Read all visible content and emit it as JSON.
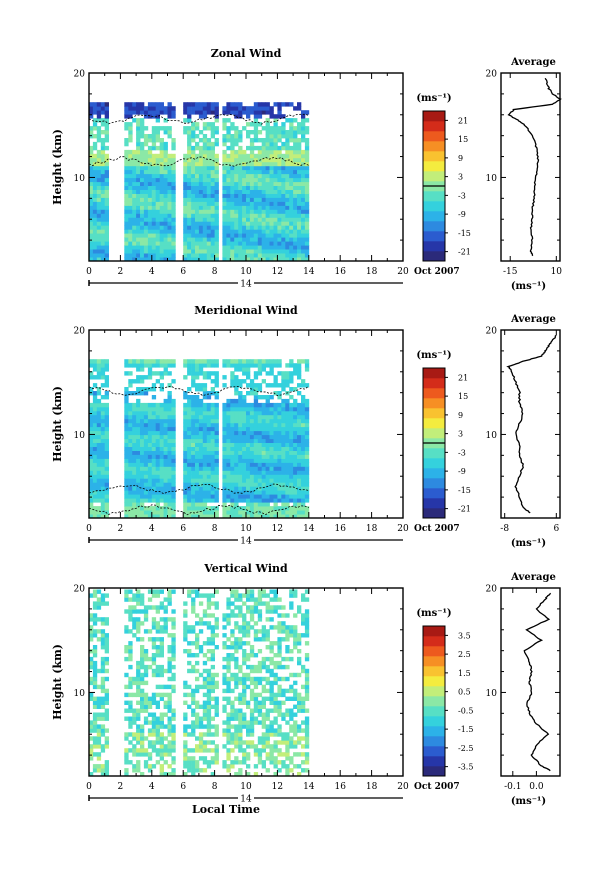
{
  "chart_data": [
    {
      "type": "heatmap",
      "title": "Zonal Wind",
      "ylabel": "Height (km)",
      "ylim": [
        2,
        20
      ],
      "y_ticks": [
        "10",
        "20"
      ],
      "xlim": [
        0,
        20
      ],
      "x_ticks": [
        "0",
        "2",
        "4",
        "6",
        "8",
        "10",
        "12",
        "14",
        "16",
        "18",
        "20"
      ],
      "date_label": "14",
      "date_suffix": "Oct 2007",
      "data_time_range": [
        0,
        14
      ],
      "data_gaps": [
        [
          1.3,
          2.3
        ],
        [
          5.6,
          5.9
        ],
        [
          8.2,
          8.5
        ]
      ],
      "colorbar": {
        "unit": "(ms⁻¹)",
        "ticks": [
          "21",
          "15",
          "9",
          "3",
          "-3",
          "-9",
          "-15",
          "-21"
        ],
        "range": [
          -24,
          24
        ],
        "zero_line": true
      },
      "profile": {
        "title": "Average",
        "x_ticks": [
          "-15",
          "10"
        ],
        "xlim": [
          -20,
          12
        ],
        "x_unit": "(ms⁻¹)",
        "heights": [
          2.5,
          3,
          4,
          5,
          6,
          7,
          8,
          9,
          10,
          11,
          12,
          13,
          14,
          15,
          15.5,
          16,
          16.5,
          17,
          17.5,
          18,
          18.5,
          19,
          19.5
        ],
        "values": [
          -3,
          -4,
          -3,
          -4,
          -3,
          -3,
          -2,
          -2,
          -1,
          0,
          0,
          -1,
          -3,
          -7,
          -11,
          -16,
          -13,
          8,
          12,
          8,
          6,
          5,
          4
        ]
      }
    },
    {
      "type": "heatmap",
      "title": "Meridional Wind",
      "ylabel": "Height (km)",
      "ylim": [
        2,
        20
      ],
      "y_ticks": [
        "10",
        "20"
      ],
      "xlim": [
        0,
        20
      ],
      "x_ticks": [
        "0",
        "2",
        "4",
        "6",
        "8",
        "10",
        "12",
        "14",
        "16",
        "18",
        "20"
      ],
      "date_label": "14",
      "date_suffix": "Oct 2007",
      "data_time_range": [
        0,
        14
      ],
      "data_gaps": [
        [
          1.3,
          2.3
        ],
        [
          5.6,
          5.9
        ],
        [
          8.2,
          8.5
        ]
      ],
      "colorbar": {
        "unit": "(ms⁻¹)",
        "ticks": [
          "21",
          "15",
          "9",
          "3",
          "-3",
          "-9",
          "-15",
          "-21"
        ],
        "range": [
          -24,
          24
        ],
        "zero_line": true
      },
      "profile": {
        "title": "Average",
        "x_ticks": [
          "-8",
          "6"
        ],
        "xlim": [
          -9,
          7
        ],
        "x_unit": "(ms⁻¹)",
        "heights": [
          2.5,
          3,
          4,
          5,
          6,
          7,
          8,
          9,
          10,
          11,
          12,
          13,
          14,
          15,
          16,
          16.5,
          17,
          17.5,
          18,
          18.5,
          19,
          19.5
        ],
        "values": [
          -1,
          -3,
          -4,
          -5,
          -4,
          -3,
          -4,
          -4,
          -5,
          -4,
          -3,
          -4,
          -4,
          -5,
          -6,
          -7,
          -3,
          2,
          3,
          4,
          5,
          6
        ]
      }
    },
    {
      "type": "heatmap",
      "title": "Vertical Wind",
      "ylabel": "Height (km)",
      "xlabel": "Local Time",
      "ylim": [
        2,
        20
      ],
      "y_ticks": [
        "10",
        "20"
      ],
      "xlim": [
        0,
        20
      ],
      "x_ticks": [
        "0",
        "2",
        "4",
        "6",
        "8",
        "10",
        "12",
        "14",
        "16",
        "18",
        "20"
      ],
      "date_label": "14",
      "date_suffix": "Oct 2007",
      "data_time_range": [
        0,
        14
      ],
      "data_gaps": [
        [
          1.3,
          2.3
        ],
        [
          5.6,
          5.9
        ],
        [
          8.2,
          8.5
        ]
      ],
      "colorbar": {
        "unit": "(ms⁻¹)",
        "ticks": [
          "3.5",
          "2.5",
          "1.5",
          "0.5",
          "-0.5",
          "-1.5",
          "-2.5",
          "-3.5"
        ],
        "range": [
          -4,
          4
        ],
        "zero_line": false
      },
      "profile": {
        "title": "Average",
        "x_ticks": [
          "-0.1",
          "0.0"
        ],
        "xlim": [
          -0.15,
          0.1
        ],
        "x_unit": "(ms⁻¹)",
        "heights": [
          2.5,
          3,
          4,
          5,
          6,
          7,
          8,
          9,
          10,
          11,
          12,
          13,
          14,
          15,
          16,
          17,
          18,
          19,
          19.5
        ],
        "values": [
          0.06,
          0.02,
          -0.02,
          0.0,
          0.05,
          0.0,
          -0.03,
          -0.04,
          -0.02,
          -0.03,
          -0.02,
          -0.03,
          -0.05,
          0.02,
          -0.04,
          0.05,
          0.0,
          0.04,
          0.06
        ]
      }
    }
  ],
  "colors": {
    "colormap": [
      "#2b2a7a",
      "#2636a8",
      "#2b5ccf",
      "#2d8ae0",
      "#2cb2e8",
      "#34d1dd",
      "#57dfc5",
      "#8be8a6",
      "#c2ee7a",
      "#f4ec3f",
      "#f9c230",
      "#f68f24",
      "#ed5a1e",
      "#d42c1a",
      "#a81a14"
    ]
  }
}
